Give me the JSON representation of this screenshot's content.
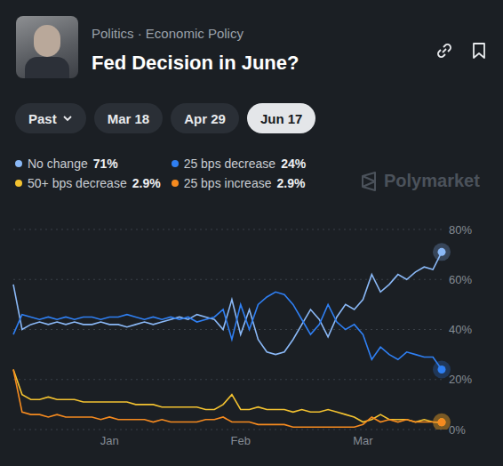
{
  "header": {
    "breadcrumb": [
      "Politics",
      "Economic Policy"
    ],
    "separator": "·",
    "tabs": [
      "Past",
      "Mar 18",
      "Apr 29",
      "Jun 17"
    ],
    "dropdown_tab": "Past",
    "selected_tab": "Jun 17",
    "watermark": "Polymarket"
  },
  "chart_data": {
    "type": "line",
    "title": "Fed Decision in June?",
    "legend": "top",
    "grid": true,
    "categories": [
      null,
      null,
      null,
      null,
      null,
      null,
      null,
      null,
      null,
      null,
      null,
      "Jan",
      null,
      null,
      null,
      null,
      null,
      null,
      null,
      null,
      null,
      null,
      null,
      null,
      null,
      null,
      "Feb",
      null,
      null,
      null,
      null,
      null,
      null,
      null,
      null,
      null,
      null,
      null,
      null,
      null,
      "Mar",
      null,
      null,
      null,
      null,
      null,
      null,
      null,
      null,
      null
    ],
    "ylim": [
      0,
      80
    ],
    "yticks": [
      {
        "value": 0,
        "label": "0%"
      },
      {
        "value": 20,
        "label": "20%"
      },
      {
        "value": 40,
        "label": "40%"
      },
      {
        "value": 60,
        "label": "60%"
      },
      {
        "value": 80,
        "label": "80%"
      }
    ],
    "series": [
      {
        "name": "No change",
        "color": "#8ab8f6",
        "marker": "end",
        "value_label": "71%",
        "values": [
          58,
          40,
          42,
          43,
          42,
          43,
          42,
          43,
          42,
          42,
          43,
          42,
          42,
          41,
          42,
          43,
          42,
          43,
          44,
          45,
          44,
          46,
          45,
          44,
          40,
          52,
          38,
          48,
          36,
          31,
          30,
          31,
          36,
          42,
          48,
          44,
          37,
          45,
          50,
          48,
          52,
          62,
          55,
          58,
          62,
          60,
          63,
          65,
          64,
          71
        ]
      },
      {
        "name": "25 bps decrease",
        "color": "#2f7ff2",
        "marker": "end",
        "value_label": "24%",
        "values": [
          38,
          46,
          45,
          44,
          45,
          44,
          45,
          44,
          45,
          45,
          44,
          45,
          45,
          46,
          45,
          44,
          45,
          44,
          45,
          44,
          45,
          43,
          44,
          45,
          48,
          36,
          50,
          40,
          50,
          53,
          55,
          54,
          50,
          44,
          38,
          42,
          50,
          43,
          40,
          42,
          38,
          28,
          33,
          30,
          28,
          31,
          30,
          29,
          29,
          24
        ]
      },
      {
        "name": "50+ bps decrease",
        "color": "#f3c230",
        "marker": "end",
        "value_label": "2.9%",
        "values": [
          24,
          14,
          12,
          12,
          13,
          12,
          12,
          12,
          11,
          11,
          11,
          11,
          11,
          11,
          10,
          10,
          10,
          9,
          9,
          9,
          9,
          9,
          8,
          8,
          10,
          14,
          8,
          8,
          9,
          8,
          8,
          8,
          7,
          8,
          7,
          7,
          8,
          7,
          6,
          5,
          3,
          4,
          6,
          4,
          4,
          4,
          3,
          4,
          3,
          2.9
        ]
      },
      {
        "name": "25 bps increase",
        "color": "#f58a1f",
        "marker": "end",
        "value_label": "2.9%",
        "values": [
          24,
          7,
          6,
          6,
          5,
          6,
          5,
          5,
          5,
          5,
          4,
          5,
          4,
          4,
          4,
          4,
          3,
          4,
          3,
          3,
          3,
          3,
          4,
          4,
          5,
          3,
          3,
          3,
          2,
          2,
          2,
          2,
          1,
          1,
          1,
          1,
          1,
          1,
          1,
          1,
          2,
          5,
          3,
          4,
          3,
          4,
          3,
          3,
          3,
          2.9
        ]
      }
    ]
  }
}
